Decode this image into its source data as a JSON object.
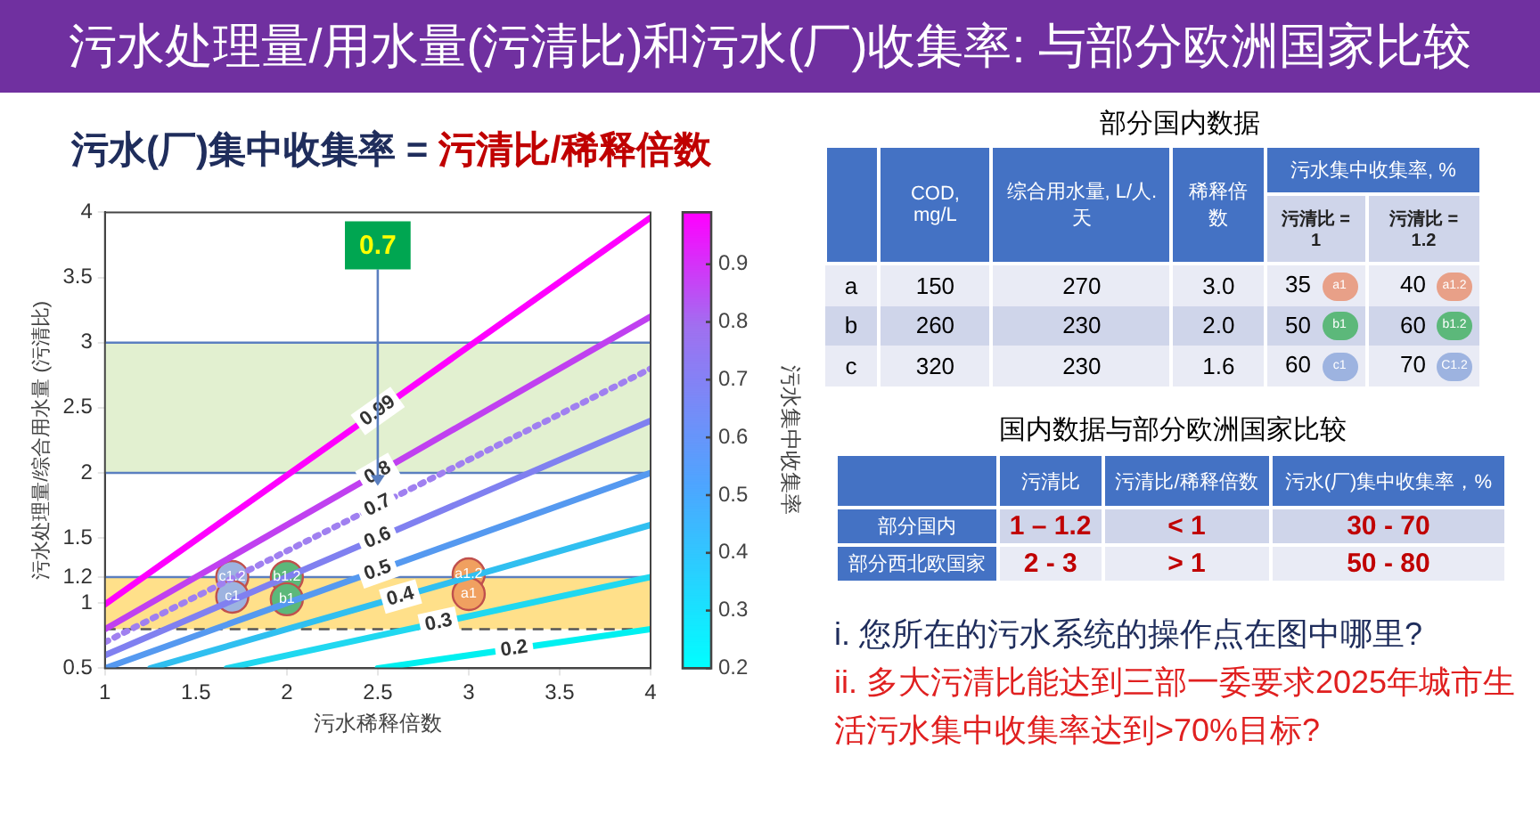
{
  "chart_data": [
    {
      "type": "other",
      "title": "污水处理量/用水量(污清比)和污水(厂)收集率: 与部分欧洲国家比较",
      "color": "#7030a0"
    },
    {
      "type": "line",
      "title": "污水(厂)集中收集率 = ",
      "subtitle": "污清比/稀释倍数",
      "xlabel": "污水稀释倍数",
      "ylabel": "污水处理量/综合用水量 (污清比)",
      "clabel": "污水集中收集率",
      "xlim": [
        1,
        4
      ],
      "xticks": [
        1,
        1.5,
        2,
        2.5,
        3,
        3.5,
        4
      ],
      "ylim": [
        0.5,
        4
      ],
      "yticks": [
        0.5,
        1,
        1.2,
        1.5,
        2,
        2.5,
        3,
        3.5,
        4
      ],
      "clim": [
        0.2,
        0.99
      ],
      "cticks": [
        0.2,
        0.3,
        0.4,
        0.5,
        0.6,
        0.7,
        0.8,
        0.9
      ],
      "grid": false,
      "legend": false,
      "series": [
        {
          "name": "0.99",
          "color": "#ff00ff",
          "x": [
            1,
            4
          ],
          "values": [
            0.99,
            3.96
          ]
        },
        {
          "name": "0.8",
          "color": "#c040f0",
          "x": [
            1,
            4
          ],
          "values": [
            0.8,
            3.2
          ]
        },
        {
          "name": "0.7",
          "color": "#a080f0",
          "x": [
            1,
            4
          ],
          "values": [
            0.7,
            2.8
          ],
          "line_style": "dotted"
        },
        {
          "name": "0.6",
          "color": "#8080f0",
          "x": [
            1,
            4
          ],
          "values": [
            0.6,
            2.4
          ]
        },
        {
          "name": "0.5",
          "color": "#5599f0",
          "x": [
            1,
            4
          ],
          "values": [
            0.5,
            2.0
          ]
        },
        {
          "name": "0.4",
          "color": "#30bff0",
          "x": [
            1.25,
            4
          ],
          "values": [
            0.5,
            1.6
          ]
        },
        {
          "name": "0.3",
          "color": "#20d8f0",
          "x": [
            1.67,
            4
          ],
          "values": [
            0.5,
            1.2
          ]
        },
        {
          "name": "0.2",
          "color": "#00f0f0",
          "x": [
            2.5,
            4
          ],
          "values": [
            0.5,
            0.8
          ]
        },
        {
          "type": "scatter",
          "color": "#9db3e0",
          "x": [
            1.7,
            1.7
          ],
          "values": [
            1.2,
            1.05
          ],
          "value_labels": [
            "c1.2",
            "c1"
          ]
        },
        {
          "type": "scatter",
          "color": "#5cb87a",
          "x": [
            2.0,
            2.0
          ],
          "values": [
            1.2,
            1.03
          ],
          "value_labels": [
            "b1.2",
            "b1"
          ]
        },
        {
          "type": "scatter",
          "color": "#f0a060",
          "x": [
            3.0,
            3.0
          ],
          "values": [
            1.22,
            1.07
          ],
          "value_labels": [
            "a1.2",
            "a1"
          ]
        }
      ],
      "bands": [
        {
          "axis": "y",
          "from": 2,
          "to": 3,
          "color": "#e2f0d0"
        },
        {
          "axis": "y",
          "from": 0.8,
          "to": 1.2,
          "color": "#ffe08a"
        }
      ],
      "ref_lines": [
        {
          "axis": "y",
          "value": 3,
          "color": "#5b7fc0"
        },
        {
          "axis": "y",
          "value": 2,
          "color": "#5b7fc0"
        },
        {
          "axis": "y",
          "value": 1.2,
          "color": "#5b7fc0"
        },
        {
          "axis": "y",
          "value": 0.8,
          "color": "#555555",
          "line_style": "dashed"
        }
      ],
      "annotations": [
        {
          "text": "0.7",
          "x": 2.5,
          "y": 1.9
        }
      ]
    },
    {
      "type": "other",
      "title": "部分国内数据",
      "subtitle": "污水集中收集率, %",
      "categories": [
        "COD, mg/L",
        "综合用水量, L/人.天",
        "稀释倍数",
        "污清比 = 1",
        "污清比 = 1.2"
      ],
      "y_categories": [
        "a",
        "b",
        "c"
      ],
      "cell_labels": [
        [
          "150",
          "270",
          "3.0",
          "35",
          "40"
        ],
        [
          "260",
          "230",
          "2.0",
          "50",
          "60"
        ],
        [
          "320",
          "230",
          "1.6",
          "60",
          "70"
        ]
      ],
      "annotations": [
        "a1",
        "a1.2",
        "b1",
        "b1.2",
        "c1",
        "C1.2"
      ]
    },
    {
      "type": "other",
      "title": "国内数据与部分欧洲国家比较",
      "categories": [
        "污清比",
        "污清比/稀释倍数",
        "污水(厂)集中收集率，%"
      ],
      "y_categories": [
        "部分国内",
        "部分西北欧国家"
      ],
      "cell_labels": [
        [
          "1 – 1.2",
          "< 1",
          "30 - 70"
        ],
        [
          "2 - 3",
          "> 1",
          "50 - 80"
        ]
      ]
    },
    {
      "type": "other",
      "annotations": [
        "i. 您所在的污水系统的操作点在图中哪里?",
        "ii. 多大污清比能达到三部一委要求2025年城市生活污水集中收集率达到>70%目标?"
      ]
    }
  ]
}
